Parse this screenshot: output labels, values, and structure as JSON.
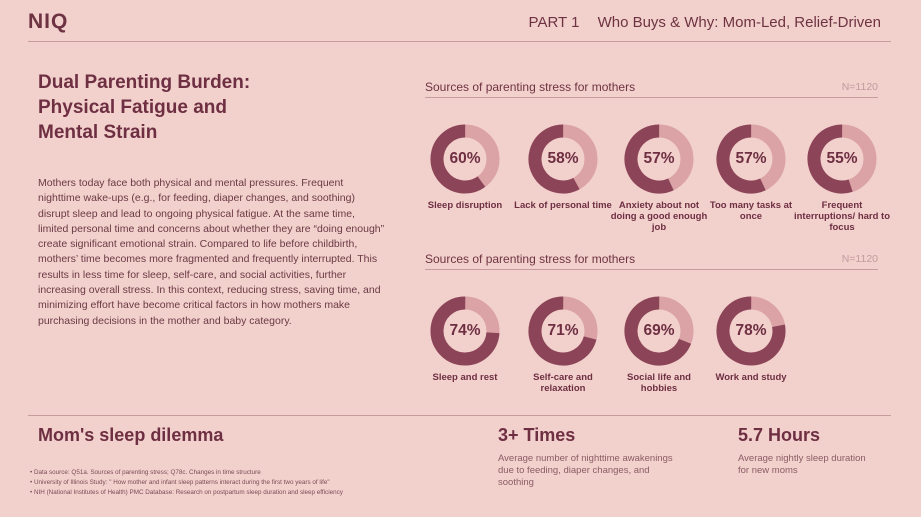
{
  "header": {
    "logo": "NIQ",
    "part": "PART 1",
    "title": "Who Buys & Why: Mom-Led, Relief-Driven"
  },
  "left": {
    "title_lines": [
      "Dual Parenting Burden:",
      "Physical Fatigue and",
      "Mental Strain"
    ],
    "body": "Mothers today face both physical and mental pressures. Frequent nighttime wake-ups (e.g., for feeding, diaper changes, and soothing) disrupt sleep and lead to ongoing physical fatigue. At the same time, limited personal time and concerns about whether they are “doing enough” create significant emotional strain. Compared to life before childbirth, mothers’ time becomes more fragmented and frequently interrupted. This results in less time for sleep, self-care, and social activities, further increasing overall stress. In this context, reducing stress, saving time, and minimizing effort have become critical factors in how mothers make purchasing decisions in the mother and baby category."
  },
  "chart_data": [
    {
      "type": "pie",
      "title": "Sources of parenting stress for mothers",
      "note": "N=1120",
      "categories": [
        "Sleep disruption",
        "Lack of personal time",
        "Anxiety about not doing a good enough job",
        "Too many tasks at once",
        "Frequent interruptions/ hard to focus"
      ],
      "values": [
        60,
        58,
        57,
        57,
        55
      ],
      "value_labels": [
        "60%",
        "58%",
        "57%",
        "57%",
        "55%"
      ],
      "colors": {
        "filled": "#8c4558",
        "remaining": "#dba3a5"
      }
    },
    {
      "type": "pie",
      "title": "Sources of parenting stress for mothers",
      "note": "N=1120",
      "categories": [
        "Sleep and rest",
        "Self-care and relaxation",
        "Social life and hobbies",
        "Work and study"
      ],
      "values": [
        74,
        71,
        69,
        78
      ],
      "value_labels": [
        "74%",
        "71%",
        "69%",
        "78%"
      ],
      "colors": {
        "filled": "#8c4558",
        "remaining": "#dba3a5"
      }
    }
  ],
  "bottom": {
    "title": "Mom's sleep dilemma",
    "stat1": {
      "value": "3+ Times",
      "desc": "Average number of nighttime awakenings due to feeding, diaper changes, and soothing"
    },
    "stat2": {
      "value": "5.7 Hours",
      "desc": "Average nightly sleep duration for new moms"
    },
    "footnotes": [
      "Data source: Q51a. Sources of parenting stress; Q78c. Changes in time structure",
      "University of Illinois Study: \" How mother and infant sleep patterns interact during the first two years of life\"",
      "NIH (National Institutes of Health) PMC Database: Research on postpartum sleep duration and sleep efficiency"
    ]
  }
}
